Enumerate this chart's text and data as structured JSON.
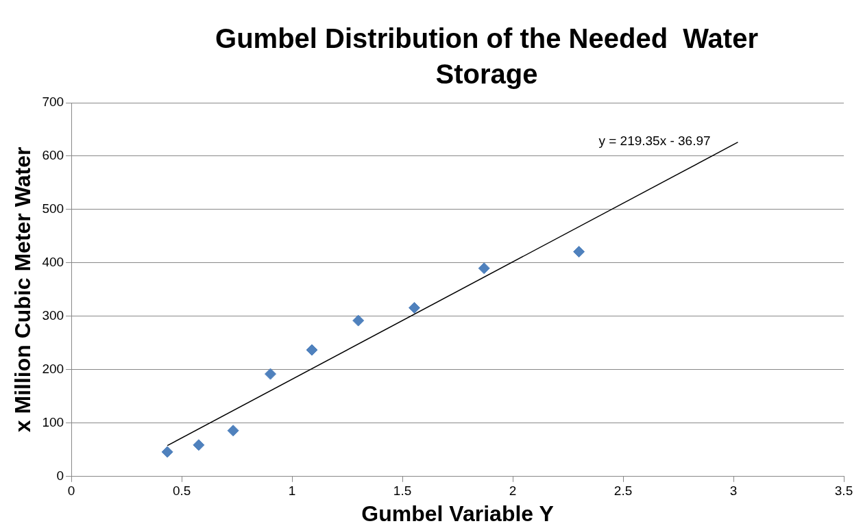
{
  "chart_data": {
    "type": "scatter",
    "title": "Gumbel Distribution of the Needed  Water Storage",
    "xlabel": "Gumbel Variable Y",
    "ylabel": "x Million Cubic Meter Water",
    "series": [
      {
        "color": "#4f81bd",
        "marker": "diamond",
        "x": [
          0.435,
          0.577,
          0.733,
          0.902,
          1.09,
          1.3,
          1.554,
          1.87,
          2.3
        ],
        "values": [
          46,
          59,
          86,
          192,
          237,
          292,
          316,
          390,
          421
        ]
      },
      {
        "type": "line",
        "color": "#000000",
        "marker": "none",
        "line_style": "solid",
        "x": [
          0.435,
          3.02
        ],
        "values": [
          58,
          626
        ]
      }
    ],
    "annotations": [
      "y = 219.35x - 36.97"
    ],
    "xlim": [
      0,
      3.5
    ],
    "xticks": [
      0,
      0.5,
      1,
      1.5,
      2,
      2.5,
      3,
      3.5
    ],
    "ylim": [
      0,
      700
    ],
    "yticks": [
      0,
      100,
      200,
      300,
      400,
      500,
      600,
      700
    ],
    "grid": "y",
    "legend": false
  }
}
